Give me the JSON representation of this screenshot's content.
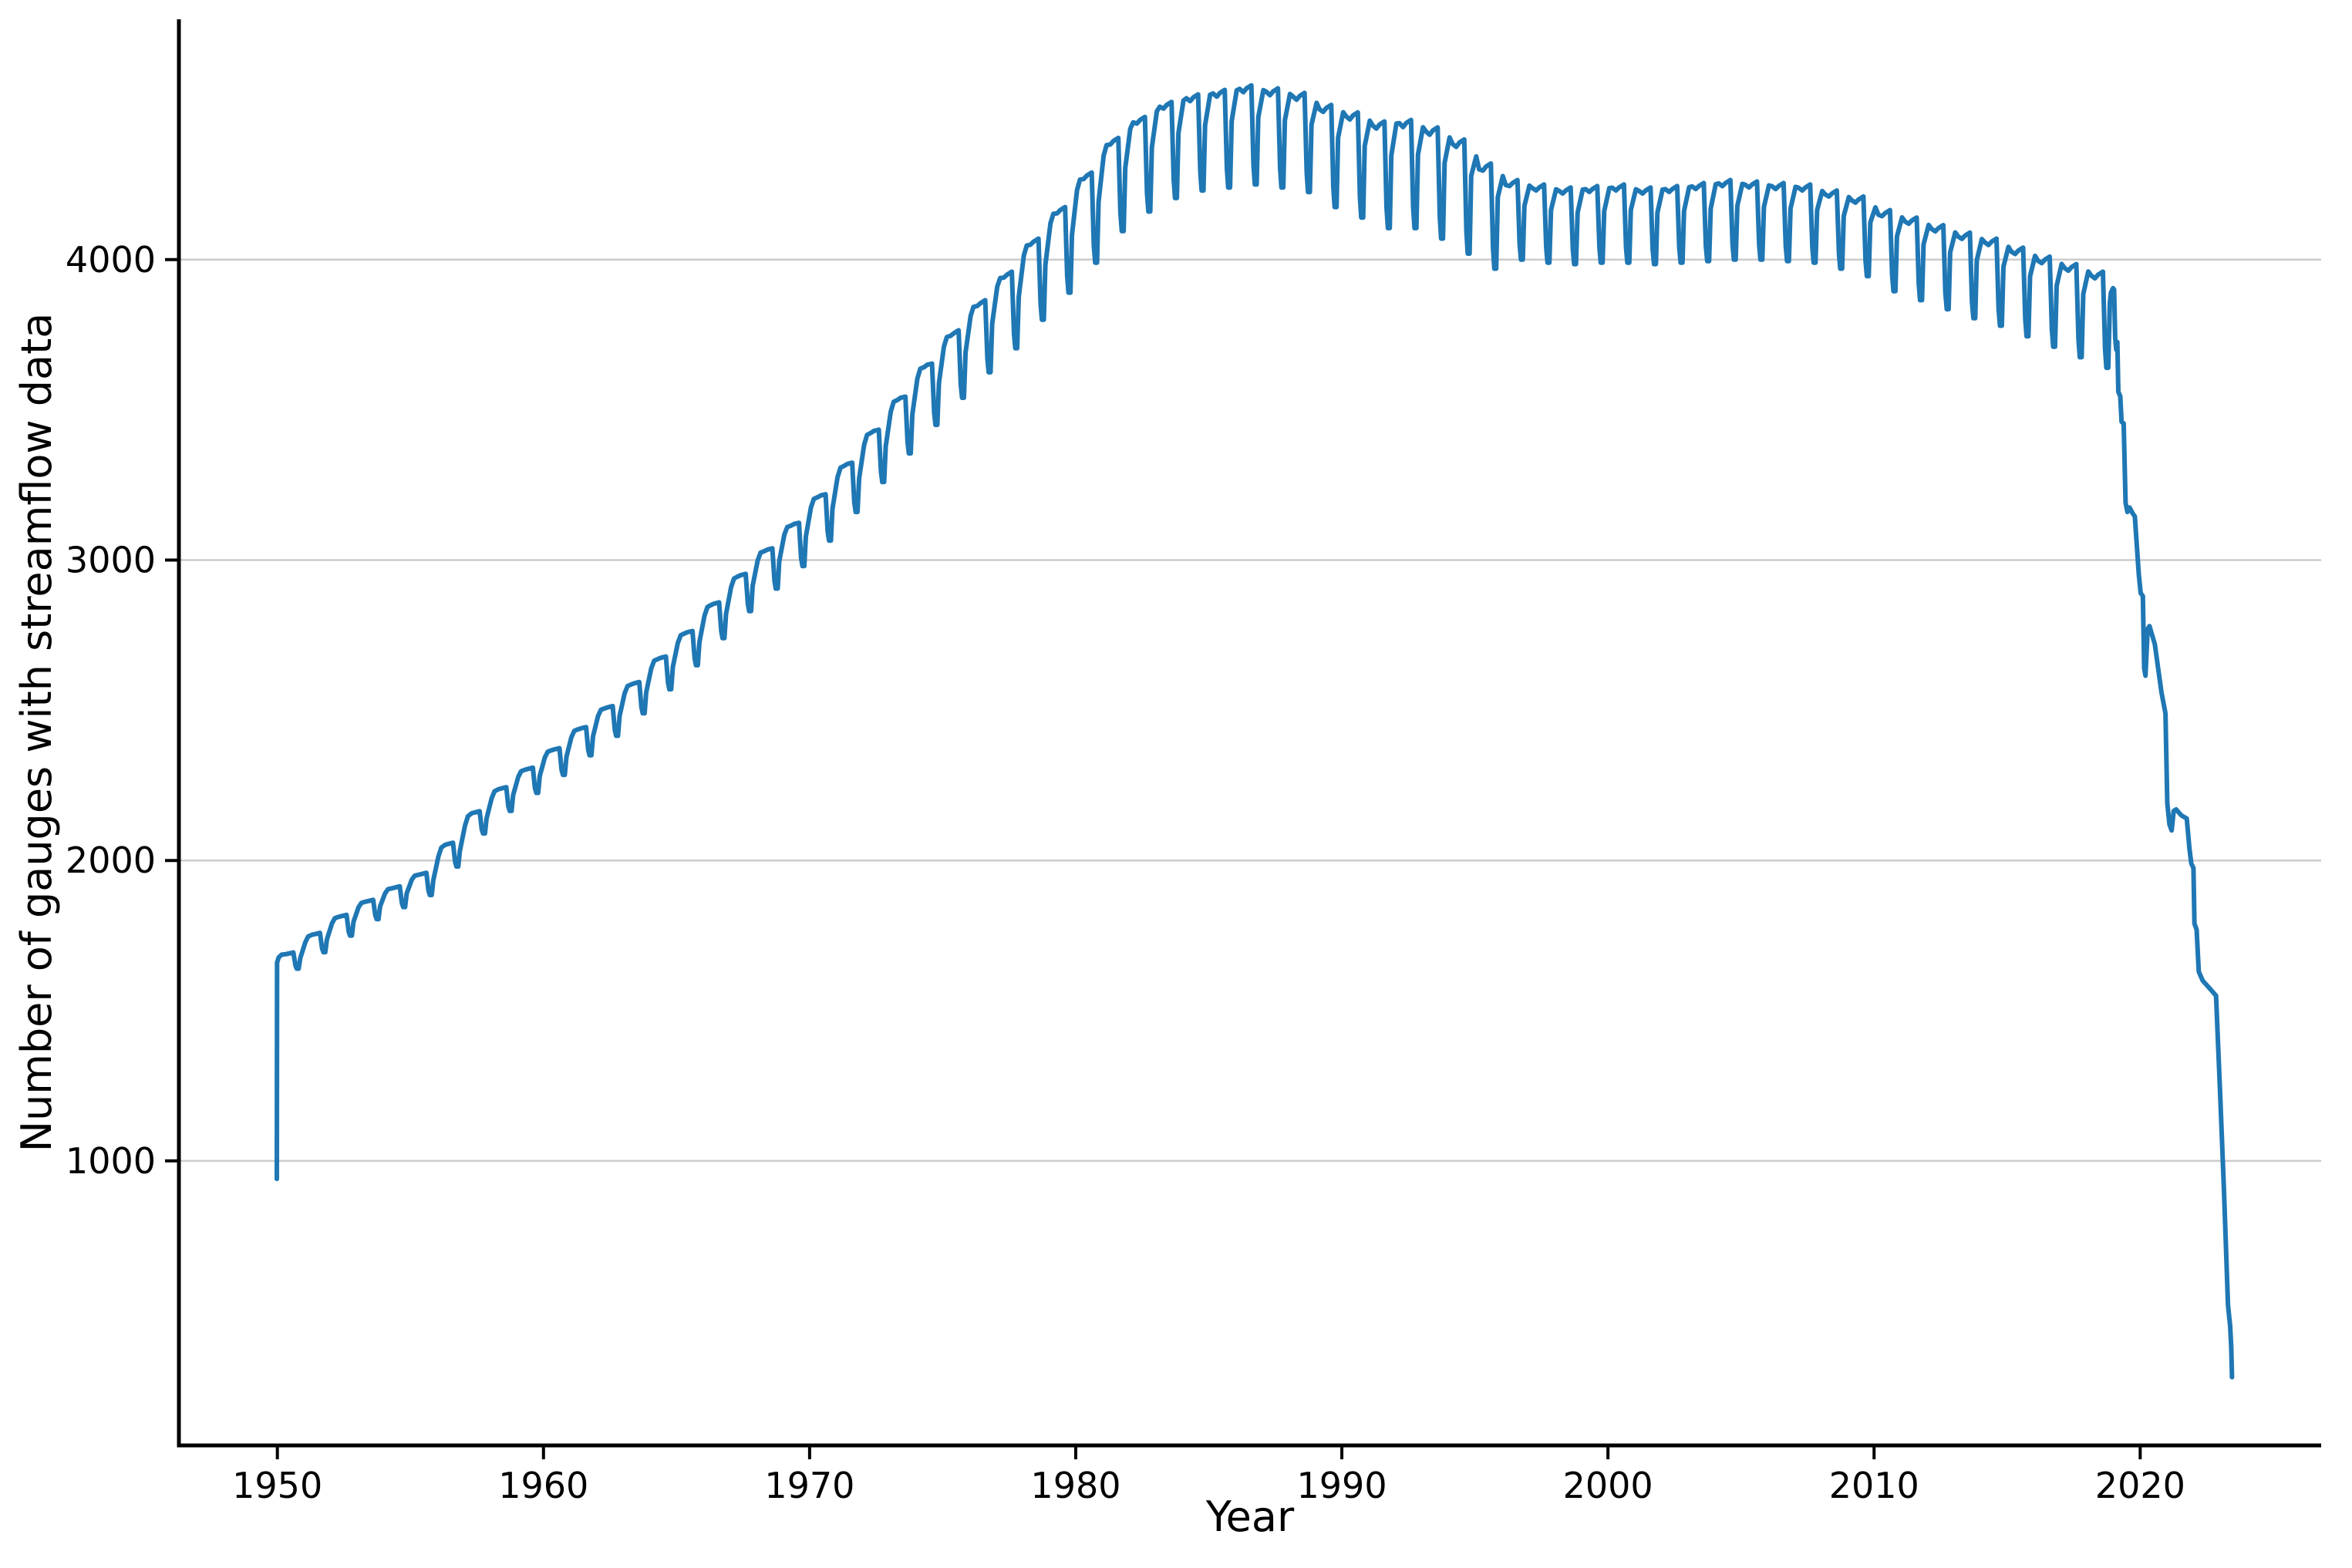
{
  "figure": {
    "background": "#ffffff"
  },
  "chart_data": {
    "type": "line",
    "title": "",
    "xlabel": "Year",
    "ylabel": "Number of gauges with streamflow data",
    "legend": "none",
    "grid": "horizontal",
    "x_ticks": [
      1950,
      1960,
      1970,
      1980,
      1990,
      2000,
      2010,
      2020
    ],
    "y_ticks": [
      1000,
      2000,
      3000,
      4000
    ],
    "xlim": [
      1946.3,
      2026.8
    ],
    "ylim": [
      53,
      4800
    ],
    "line_color": "#1f77b4",
    "grid_color": "#cccccc",
    "axis_color": "#000000",
    "series_name": "Number of gauges with streamflow data",
    "encoding_note": "annual_levels entries are [year, annual high level, seasonal dip depth]; start and tail are explicit [year, value] points",
    "start": [
      [
        1949.98,
        940
      ],
      [
        1949.99,
        1660
      ]
    ],
    "annual_levels": [
      [
        1950,
        1690,
        50
      ],
      [
        1951,
        1755,
        60
      ],
      [
        1952,
        1815,
        65
      ],
      [
        1953,
        1865,
        60
      ],
      [
        1954,
        1910,
        65
      ],
      [
        1955,
        1955,
        70
      ],
      [
        1956,
        2055,
        75
      ],
      [
        1957,
        2160,
        70
      ],
      [
        1958,
        2240,
        75
      ],
      [
        1959,
        2305,
        80
      ],
      [
        1960,
        2370,
        85
      ],
      [
        1961,
        2440,
        90
      ],
      [
        1962,
        2510,
        95
      ],
      [
        1963,
        2590,
        100
      ],
      [
        1964,
        2675,
        105
      ],
      [
        1965,
        2760,
        110
      ],
      [
        1966,
        2855,
        115
      ],
      [
        1967,
        2950,
        120
      ],
      [
        1968,
        3035,
        130
      ],
      [
        1969,
        3120,
        140
      ],
      [
        1970,
        3215,
        150
      ],
      [
        1971,
        3320,
        160
      ],
      [
        1972,
        3430,
        170
      ],
      [
        1973,
        3540,
        185
      ],
      [
        1974,
        3650,
        200
      ],
      [
        1975,
        3755,
        215
      ],
      [
        1976,
        3855,
        230
      ],
      [
        1977,
        3950,
        245
      ],
      [
        1978,
        4060,
        260
      ],
      [
        1979,
        4165,
        275
      ],
      [
        1980,
        4280,
        290
      ],
      [
        1981,
        4395,
        300
      ],
      [
        1982,
        4465,
        305
      ],
      [
        1983,
        4515,
        310
      ],
      [
        1984,
        4540,
        310
      ],
      [
        1985,
        4555,
        315
      ],
      [
        1986,
        4570,
        320
      ],
      [
        1987,
        4560,
        320
      ],
      [
        1988,
        4545,
        320
      ],
      [
        1989,
        4505,
        330
      ],
      [
        1990,
        4480,
        340
      ],
      [
        1991,
        4450,
        345
      ],
      [
        1992,
        4455,
        350
      ],
      [
        1993,
        4430,
        360
      ],
      [
        1994,
        4390,
        370
      ],
      [
        1995,
        4310,
        340
      ],
      [
        1996,
        4255,
        255
      ],
      [
        1997,
        4240,
        250
      ],
      [
        1998,
        4230,
        245
      ],
      [
        1999,
        4235,
        245
      ],
      [
        2000,
        4240,
        250
      ],
      [
        2001,
        4230,
        245
      ],
      [
        2002,
        4235,
        245
      ],
      [
        2003,
        4245,
        250
      ],
      [
        2004,
        4255,
        255
      ],
      [
        2005,
        4250,
        250
      ],
      [
        2006,
        4245,
        250
      ],
      [
        2007,
        4240,
        250
      ],
      [
        2008,
        4220,
        250
      ],
      [
        2009,
        4200,
        255
      ],
      [
        2010,
        4155,
        260
      ],
      [
        2011,
        4130,
        265
      ],
      [
        2012,
        4105,
        270
      ],
      [
        2013,
        4080,
        275
      ],
      [
        2014,
        4060,
        280
      ],
      [
        2015,
        4030,
        285
      ],
      [
        2016,
        4000,
        290
      ],
      [
        2017,
        3975,
        300
      ],
      [
        2018,
        3950,
        310
      ]
    ],
    "tail": [
      [
        2018.9,
        3890
      ],
      [
        2018.98,
        3905
      ],
      [
        2019.02,
        3900
      ],
      [
        2019.06,
        3740
      ],
      [
        2019.1,
        3700
      ],
      [
        2019.14,
        3725
      ],
      [
        2019.18,
        3560
      ],
      [
        2019.25,
        3545
      ],
      [
        2019.3,
        3460
      ],
      [
        2019.38,
        3455
      ],
      [
        2019.45,
        3190
      ],
      [
        2019.52,
        3160
      ],
      [
        2019.6,
        3175
      ],
      [
        2019.72,
        3155
      ],
      [
        2019.8,
        3145
      ],
      [
        2019.95,
        2950
      ],
      [
        2020.02,
        2890
      ],
      [
        2020.1,
        2880
      ],
      [
        2020.15,
        2640
      ],
      [
        2020.2,
        2615
      ],
      [
        2020.28,
        2770
      ],
      [
        2020.35,
        2780
      ],
      [
        2020.55,
        2720
      ],
      [
        2020.8,
        2560
      ],
      [
        2020.95,
        2490
      ],
      [
        2021.02,
        2190
      ],
      [
        2021.1,
        2120
      ],
      [
        2021.18,
        2100
      ],
      [
        2021.26,
        2165
      ],
      [
        2021.35,
        2170
      ],
      [
        2021.55,
        2150
      ],
      [
        2021.75,
        2140
      ],
      [
        2021.85,
        2040
      ],
      [
        2021.92,
        1990
      ],
      [
        2022.0,
        1975
      ],
      [
        2022.04,
        1790
      ],
      [
        2022.12,
        1770
      ],
      [
        2022.2,
        1630
      ],
      [
        2022.35,
        1600
      ],
      [
        2022.6,
        1575
      ],
      [
        2022.85,
        1550
      ],
      [
        2023.0,
        1230
      ],
      [
        2023.15,
        900
      ],
      [
        2023.3,
        520
      ],
      [
        2023.38,
        450
      ],
      [
        2023.42,
        380
      ],
      [
        2023.45,
        280
      ]
    ]
  }
}
